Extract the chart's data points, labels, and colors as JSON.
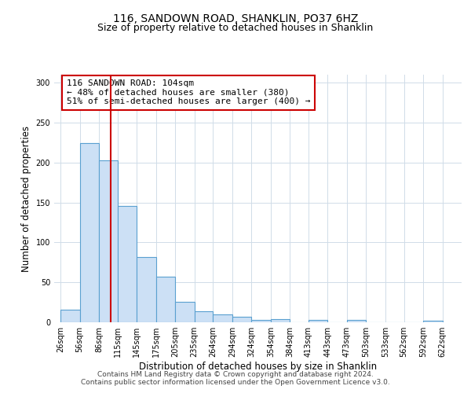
{
  "title": "116, SANDOWN ROAD, SHANKLIN, PO37 6HZ",
  "subtitle": "Size of property relative to detached houses in Shanklin",
  "xlabel": "Distribution of detached houses by size in Shanklin",
  "ylabel": "Number of detached properties",
  "footer_line1": "Contains HM Land Registry data © Crown copyright and database right 2024.",
  "footer_line2": "Contains public sector information licensed under the Open Government Licence v3.0.",
  "bar_left_edges": [
    26,
    56,
    86,
    115,
    145,
    175,
    205,
    235,
    264,
    294,
    324,
    354,
    384,
    413,
    443,
    473,
    503,
    533,
    562,
    592
  ],
  "bar_heights": [
    16,
    224,
    203,
    146,
    82,
    57,
    26,
    14,
    10,
    7,
    3,
    4,
    0,
    3,
    0,
    3,
    0,
    0,
    0,
    2
  ],
  "bar_widths": [
    30,
    30,
    29,
    30,
    30,
    30,
    30,
    29,
    30,
    30,
    30,
    30,
    29,
    30,
    30,
    30,
    30,
    29,
    30,
    30
  ],
  "bar_face_color": "#cce0f5",
  "bar_edge_color": "#5aa0d0",
  "tick_labels": [
    "26sqm",
    "56sqm",
    "86sqm",
    "115sqm",
    "145sqm",
    "175sqm",
    "205sqm",
    "235sqm",
    "264sqm",
    "294sqm",
    "324sqm",
    "354sqm",
    "384sqm",
    "413sqm",
    "443sqm",
    "473sqm",
    "503sqm",
    "533sqm",
    "562sqm",
    "592sqm",
    "622sqm"
  ],
  "tick_positions": [
    26,
    56,
    86,
    115,
    145,
    175,
    205,
    235,
    264,
    294,
    324,
    354,
    384,
    413,
    443,
    473,
    503,
    533,
    562,
    592,
    622
  ],
  "vline_x": 104,
  "vline_color": "#cc0000",
  "ylim": [
    0,
    310
  ],
  "xlim": [
    16,
    652
  ],
  "annotation_text": "116 SANDOWN ROAD: 104sqm\n← 48% of detached houses are smaller (380)\n51% of semi-detached houses are larger (400) →",
  "grid_color": "#d0dce8",
  "background_color": "#ffffff",
  "title_fontsize": 10,
  "subtitle_fontsize": 9,
  "axis_label_fontsize": 8.5,
  "tick_fontsize": 7,
  "annotation_fontsize": 8,
  "footer_fontsize": 6.5
}
